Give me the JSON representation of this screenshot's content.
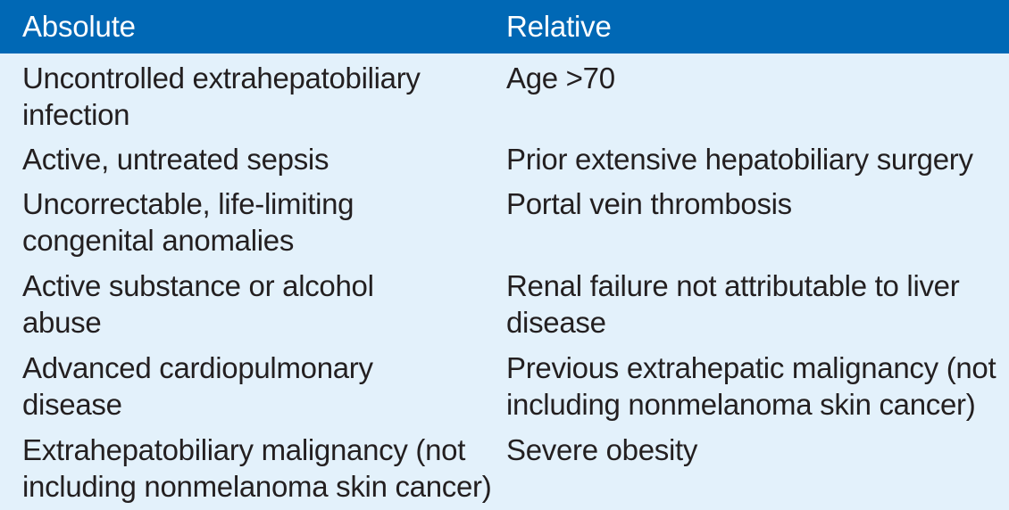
{
  "table": {
    "headers": {
      "absolute": "Absolute",
      "relative": "Relative"
    },
    "rows": [
      {
        "absolute": "Uncontrolled extrahepatobiliary\ninfection",
        "relative": "Age >70"
      },
      {
        "absolute": "Active, untreated sepsis",
        "relative": "Prior extensive hepatobiliary surgery"
      },
      {
        "absolute": "Uncorrectable, life-limiting\ncongenital anomalies",
        "relative": "Portal vein thrombosis"
      },
      {
        "absolute": "Active substance or alcohol\nabuse",
        "relative": "Renal failure not attributable to liver\ndisease"
      },
      {
        "absolute": "Advanced cardiopulmonary\ndisease",
        "relative": "Previous extrahepatic malignancy (not\nincluding nonmelanoma skin cancer)"
      },
      {
        "absolute": "Extrahepatobiliary malignancy (not\nincluding nonmelanoma skin cancer)",
        "relative": "Severe obesity"
      }
    ]
  },
  "colors": {
    "header_background": "#0068b5",
    "body_background": "#e3f1fb",
    "header_text": "#ffffff",
    "body_text": "#231f20"
  }
}
